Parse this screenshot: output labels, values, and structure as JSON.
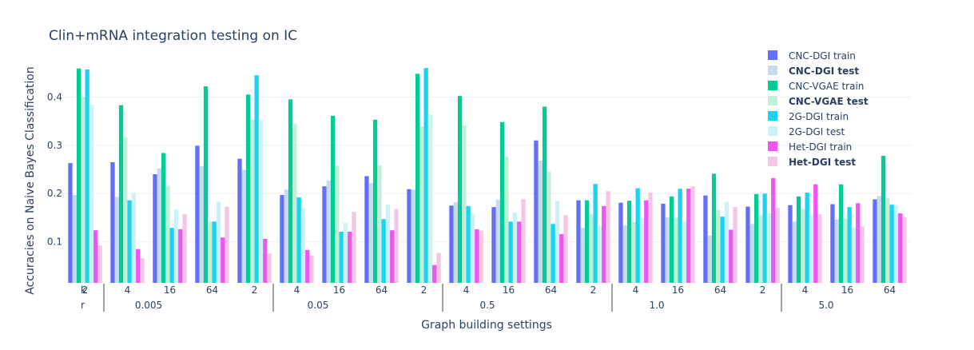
{
  "chart_data": {
    "type": "bar",
    "title": "Clin+mRNA integration testing on IC",
    "xlabel": "Graph building settings",
    "ylabel": "Accuracies on Naive Bayes Classification",
    "ylim": [
      0.015,
      0.485
    ],
    "yticks": [
      0.1,
      0.2,
      0.3,
      0.4
    ],
    "grid": true,
    "legend_position": "top-right",
    "level_titles": [
      "k",
      "r"
    ],
    "groups": [
      "0.005",
      "0.05",
      "0.5",
      "1.0",
      "5.0"
    ],
    "k_values": [
      "2",
      "4",
      "16",
      "64"
    ],
    "categories": [
      "2 / 0.005",
      "4 / 0.005",
      "16 / 0.005",
      "64 / 0.005",
      "2 / 0.05",
      "4 / 0.05",
      "16 / 0.05",
      "64 / 0.05",
      "2 / 0.5",
      "4 / 0.5",
      "16 / 0.5",
      "64 / 0.5",
      "2 / 1.0",
      "4 / 1.0",
      "16 / 1.0",
      "64 / 1.0",
      "2 / 5.0",
      "4 / 5.0",
      "16 / 5.0",
      "64 / 5.0"
    ],
    "series": [
      {
        "name": "CNC-DGI train",
        "color": "#636efa",
        "bold": false,
        "values": [
          0.263,
          0.265,
          0.24,
          0.299,
          0.272,
          0.197,
          0.215,
          0.236,
          0.209,
          0.175,
          0.172,
          0.31,
          0.186,
          0.181,
          0.179,
          0.196,
          0.173,
          0.176,
          0.178,
          0.188
        ]
      },
      {
        "name": "CNC-DGI test",
        "color": "#c6dbef",
        "bold": true,
        "values": [
          0.197,
          0.193,
          0.252,
          0.257,
          0.249,
          0.208,
          0.227,
          0.222,
          0.208,
          0.182,
          0.187,
          0.268,
          0.129,
          0.134,
          0.151,
          0.113,
          0.137,
          0.142,
          0.146,
          0.195
        ]
      },
      {
        "name": "CNC-VGAE train",
        "color": "#00cc96",
        "bold": false,
        "values": [
          0.459,
          0.383,
          0.284,
          0.422,
          0.405,
          0.395,
          0.361,
          0.353,
          0.448,
          0.402,
          0.348,
          0.38,
          0.186,
          0.185,
          0.194,
          0.241,
          0.199,
          0.194,
          0.219,
          0.278
        ]
      },
      {
        "name": "CNC-VGAE test",
        "color": "#c2f0d6",
        "bold": true,
        "values": [
          0.401,
          0.316,
          0.216,
          0.142,
          0.353,
          0.345,
          0.258,
          0.258,
          0.339,
          0.341,
          0.276,
          0.245,
          0.157,
          0.141,
          0.15,
          0.166,
          0.155,
          0.168,
          0.148,
          0.19
        ]
      },
      {
        "name": "2G-DGI train",
        "color": "#19d3f3",
        "bold": false,
        "values": [
          0.457,
          0.186,
          0.129,
          0.142,
          0.445,
          0.192,
          0.121,
          0.147,
          0.46,
          0.174,
          0.142,
          0.137,
          0.22,
          0.211,
          0.21,
          0.152,
          0.2,
          0.202,
          0.172,
          0.177
        ]
      },
      {
        "name": "2G-DGI test",
        "color": "#cdf1f8",
        "bold": false,
        "values": [
          0.384,
          0.201,
          0.167,
          0.183,
          0.353,
          0.17,
          0.139,
          0.177,
          0.364,
          0.157,
          0.161,
          0.185,
          0.133,
          0.149,
          0.143,
          0.183,
          0.159,
          0.156,
          0.13,
          0.176
        ]
      },
      {
        "name": "Het-DGI train",
        "color": "#ef55f1",
        "bold": false,
        "values": [
          0.124,
          0.085,
          0.126,
          0.109,
          0.106,
          0.083,
          0.121,
          0.124,
          0.052,
          0.126,
          0.142,
          0.116,
          0.174,
          0.186,
          0.21,
          0.125,
          0.232,
          0.219,
          0.18,
          0.159
        ]
      },
      {
        "name": "Het-DGI test",
        "color": "#f2c6e4",
        "bold": true,
        "values": [
          0.093,
          0.066,
          0.157,
          0.173,
          0.076,
          0.071,
          0.162,
          0.168,
          0.077,
          0.123,
          0.188,
          0.155,
          0.205,
          0.202,
          0.215,
          0.172,
          0.17,
          0.157,
          0.132,
          0.151
        ]
      }
    ]
  }
}
